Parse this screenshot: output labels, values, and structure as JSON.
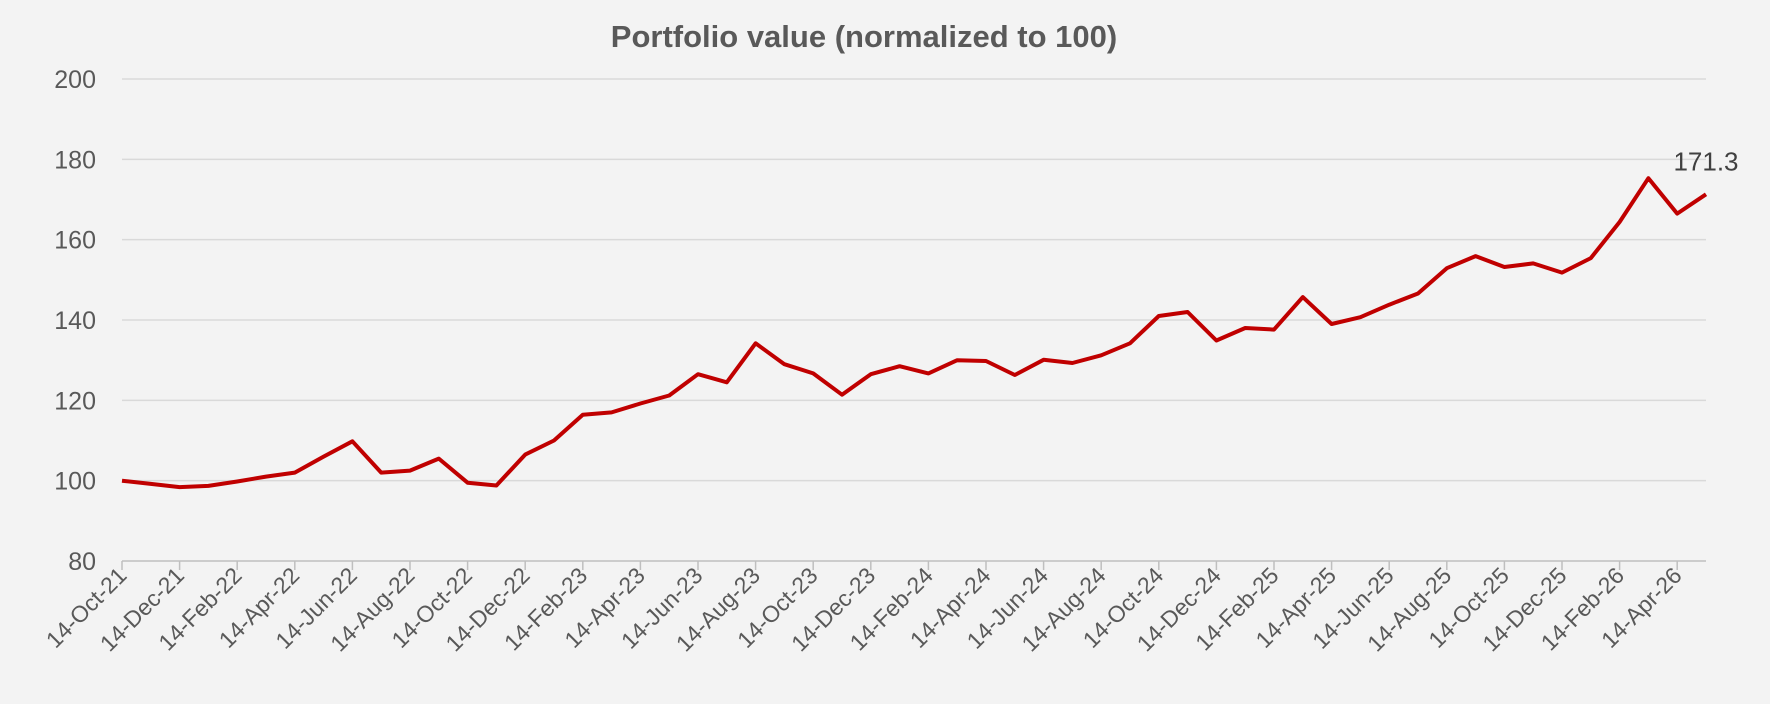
{
  "chart_data": {
    "type": "line",
    "title": "Portfolio value (normalized to 100)",
    "xlabel": "",
    "ylabel": "",
    "ylim": [
      80,
      200
    ],
    "yticks": [
      "80",
      "100",
      "120",
      "140",
      "160",
      "180",
      "200"
    ],
    "xticks": [
      "14-Oct-21",
      "14-Dec-21",
      "14-Feb-22",
      "14-Apr-22",
      "14-Jun-22",
      "14-Aug-22",
      "14-Oct-22",
      "14-Dec-22",
      "14-Feb-23",
      "14-Apr-23",
      "14-Jun-23",
      "14-Aug-23",
      "14-Oct-23",
      "14-Dec-23",
      "14-Feb-24",
      "14-Apr-24",
      "14-Jun-24",
      "14-Aug-24",
      "14-Oct-24",
      "14-Dec-24",
      "14-Feb-25",
      "14-Apr-25",
      "14-Jun-25",
      "14-Aug-25",
      "14-Oct-25",
      "14-Dec-25",
      "14-Feb-26",
      "14-Apr-26"
    ],
    "grid": true,
    "series": [
      {
        "color": "#c00000",
        "x": [
          "14-Oct-21",
          "14-Nov-21",
          "14-Dec-21",
          "14-Jan-22",
          "14-Feb-22",
          "14-Mar-22",
          "14-Apr-22",
          "14-May-22",
          "14-Jun-22",
          "14-Jul-22",
          "14-Aug-22",
          "14-Sep-22",
          "14-Oct-22",
          "14-Nov-22",
          "14-Dec-22",
          "14-Jan-23",
          "14-Feb-23",
          "14-Mar-23",
          "14-Apr-23",
          "14-May-23",
          "14-Jun-23",
          "14-Jul-23",
          "14-Aug-23",
          "14-Sep-23",
          "14-Oct-23",
          "14-Nov-23",
          "14-Dec-23",
          "14-Jan-24",
          "14-Feb-24",
          "14-Mar-24",
          "14-Apr-24",
          "14-May-24",
          "14-Jun-24",
          "14-Jul-24",
          "14-Aug-24",
          "14-Sep-24",
          "14-Oct-24",
          "14-Nov-24",
          "14-Dec-24",
          "14-Jan-25",
          "14-Feb-25",
          "14-Mar-25",
          "14-Apr-25",
          "14-May-25",
          "14-Jun-25",
          "14-Jul-25",
          "14-Aug-25",
          "14-Sep-25",
          "14-Oct-25",
          "14-Nov-25",
          "14-Dec-25",
          "14-Jan-26",
          "14-Feb-26",
          "14-Mar-26",
          "14-Apr-26",
          "14-May-26"
        ],
        "values": [
          100.0,
          99.2,
          98.4,
          98.7,
          99.8,
          101.0,
          102.0,
          106.0,
          109.8,
          102.0,
          102.5,
          105.5,
          99.5,
          98.8,
          106.5,
          110.0,
          116.4,
          117.0,
          119.2,
          121.2,
          126.5,
          124.5,
          134.2,
          129.0,
          126.7,
          121.4,
          126.5,
          128.5,
          126.7,
          130.0,
          129.8,
          126.3,
          130.1,
          129.3,
          131.2,
          134.2,
          141.0,
          142.0,
          134.9,
          138.0,
          137.6,
          145.7,
          139.0,
          140.7,
          143.8,
          146.6,
          152.9,
          155.9,
          153.2,
          154.1,
          151.8,
          155.4,
          164.4,
          175.3,
          166.5,
          171.3
        ]
      }
    ],
    "last_label": "171.3"
  }
}
